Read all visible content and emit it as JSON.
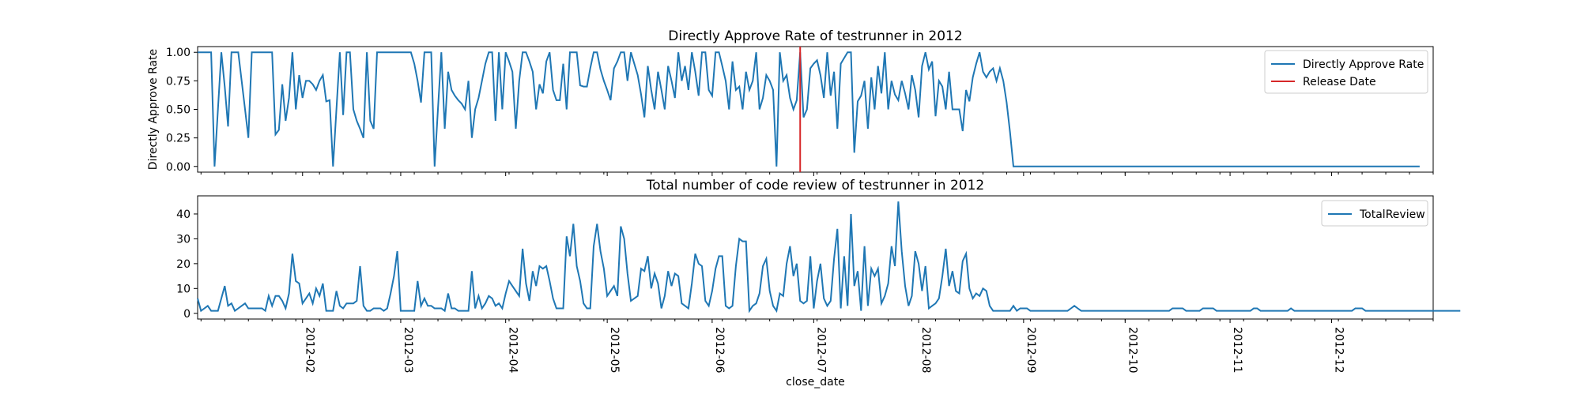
{
  "chart_data": [
    {
      "type": "line",
      "title": "Directly Approve Rate of testrunner in 2012",
      "ylabel": "Directly Approve Rate",
      "xlabel": "",
      "ylim": [
        -0.05,
        1.05
      ],
      "yticks": [
        0.0,
        0.25,
        0.5,
        0.75,
        1.0
      ],
      "ytick_labels": [
        "0.00",
        "0.25",
        "0.50",
        "0.75",
        "1.00"
      ],
      "xlim": [
        "2012-01-01",
        "2012-12-31"
      ],
      "legend": "top-right",
      "series": [
        {
          "name": "Directly Approve Rate",
          "color": "#1f77b4",
          "x_start": "2012-01-01",
          "x_step_days": 1,
          "values": [
            1.0,
            1.0,
            1.0,
            1.0,
            1.0,
            0.0,
            0.5,
            1.0,
            0.7,
            0.35,
            1.0,
            1.0,
            1.0,
            0.75,
            0.5,
            0.25,
            1.0,
            1.0,
            1.0,
            1.0,
            1.0,
            1.0,
            1.0,
            0.28,
            0.32,
            0.72,
            0.4,
            0.6,
            1.0,
            0.5,
            0.8,
            0.6,
            0.75,
            0.75,
            0.72,
            0.67,
            0.75,
            0.8,
            0.57,
            0.58,
            0.0,
            0.5,
            1.0,
            0.45,
            1.0,
            1.0,
            0.5,
            0.4,
            0.33,
            0.25,
            1.0,
            0.4,
            0.33,
            1.0,
            1.0,
            1.0,
            1.0,
            1.0,
            1.0,
            1.0,
            1.0,
            1.0,
            1.0,
            1.0,
            0.9,
            0.75,
            0.56,
            1.0,
            1.0,
            1.0,
            0.0,
            0.5,
            1.0,
            0.33,
            0.83,
            0.67,
            0.62,
            0.58,
            0.55,
            0.5,
            0.75,
            0.25,
            0.5,
            0.6,
            0.75,
            0.9,
            1.0,
            1.0,
            0.4,
            1.0,
            0.5,
            1.0,
            0.92,
            0.83,
            0.33,
            0.75,
            1.0,
            1.0,
            0.92,
            0.83,
            0.5,
            0.72,
            0.64,
            0.92,
            1.0,
            0.67,
            0.58,
            0.58,
            0.9,
            0.5,
            1.0,
            1.0,
            1.0,
            0.71,
            0.7,
            0.7,
            0.86,
            1.0,
            1.0,
            0.85,
            0.75,
            0.67,
            0.58,
            0.86,
            0.92,
            1.0,
            1.0,
            0.75,
            1.0,
            0.9,
            0.8,
            0.63,
            0.43,
            0.88,
            0.67,
            0.5,
            0.83,
            0.67,
            0.5,
            0.88,
            0.75,
            0.6,
            1.0,
            0.75,
            0.88,
            0.67,
            1.0,
            0.83,
            0.62,
            1.0,
            1.0,
            0.67,
            0.62,
            1.0,
            1.0,
            0.88,
            0.75,
            0.5,
            0.92,
            0.67,
            0.7,
            0.5,
            0.83,
            0.67,
            0.75,
            1.0,
            0.5,
            0.6,
            0.8,
            0.75,
            0.67,
            0.0,
            1.0,
            0.75,
            0.8,
            0.6,
            0.5,
            0.58,
            1.0,
            0.43,
            0.5,
            0.86,
            0.9,
            0.93,
            0.8,
            0.6,
            1.0,
            0.62,
            0.83,
            0.33,
            0.9,
            0.95,
            1.0,
            1.0,
            0.12,
            0.57,
            0.62,
            0.75,
            0.33,
            0.78,
            0.5,
            0.88,
            0.64,
            1.0,
            0.5,
            0.75,
            0.63,
            0.58,
            0.75,
            0.64,
            0.5,
            0.8,
            0.67,
            0.43,
            0.88,
            1.0,
            0.85,
            0.92,
            0.44,
            0.75,
            0.7,
            0.5,
            0.83,
            0.5,
            0.5,
            0.5,
            0.31,
            0.67,
            0.57,
            0.78,
            0.9,
            1.0,
            0.83,
            0.78,
            0.83,
            0.86,
            0.75,
            0.86,
            0.75,
            0.56,
            0.3,
            0.0,
            0.0,
            0.0,
            0.0,
            0.0,
            0.0,
            0.0,
            0.0,
            0.0,
            0.0,
            0.0,
            0.0,
            0.0,
            0.0,
            0.0,
            0.0,
            0.0,
            0.0,
            0.0,
            0.0,
            0.0,
            0.0,
            0.0,
            0.0,
            0.0,
            0.0,
            0.0,
            0.0,
            0.0,
            0.0,
            0.0,
            0.0,
            0.0,
            0.0,
            0.0,
            0.0,
            0.0,
            0.0,
            0.0,
            0.0,
            0.0,
            0.0,
            0.0,
            0.0,
            0.0,
            0.0,
            0.0,
            0.0,
            0.0,
            0.0,
            0.0,
            0.0,
            0.0,
            0.0,
            0.0,
            0.0,
            0.0,
            0.0,
            0.0,
            0.0,
            0.0,
            0.0,
            0.0,
            0.0,
            0.0,
            0.0,
            0.0,
            0.0,
            0.0,
            0.0,
            0.0,
            0.0,
            0.0,
            0.0,
            0.0,
            0.0,
            0.0,
            0.0,
            0.0,
            0.0,
            0.0,
            0.0,
            0.0,
            0.0,
            0.0,
            0.0,
            0.0,
            0.0,
            0.0,
            0.0,
            0.0,
            0.0,
            0.0,
            0.0,
            0.0,
            0.0,
            0.0,
            0.0,
            0.0,
            0.0,
            0.0,
            0.0,
            0.0,
            0.0,
            0.0,
            0.0,
            0.0,
            0.0,
            0.0,
            0.0,
            0.0,
            0.0,
            0.0,
            0.0,
            0.0,
            0.0,
            0.0,
            0.0,
            0.0,
            0.0,
            0.0
          ]
        },
        {
          "name": "Release Date",
          "color": "#d62728",
          "type": "vline",
          "x": "2012-06-27"
        }
      ]
    },
    {
      "type": "line",
      "title": "Total number of code review of testrunner in 2012",
      "xlabel": "close_date",
      "ylabel": "",
      "ylim": [
        -2.3,
        47.3
      ],
      "yticks": [
        0,
        10,
        20,
        30,
        40
      ],
      "ytick_labels": [
        "0",
        "10",
        "20",
        "30",
        "40"
      ],
      "xlim": [
        "2012-01-01",
        "2012-12-31"
      ],
      "xticks": [
        "2012-02-01",
        "2012-03-01",
        "2012-04-01",
        "2012-05-01",
        "2012-06-01",
        "2012-07-01",
        "2012-08-01",
        "2012-09-01",
        "2012-10-01",
        "2012-11-01",
        "2012-12-01"
      ],
      "xtick_labels": [
        "2012-02",
        "2012-03",
        "2012-04",
        "2012-05",
        "2012-06",
        "2012-07",
        "2012-08",
        "2012-09",
        "2012-10",
        "2012-11",
        "2012-12"
      ],
      "legend": "top-right",
      "series": [
        {
          "name": "TotalReview",
          "color": "#1f77b4",
          "x_start": "2012-01-01",
          "x_step_days": 1,
          "values": [
            6,
            1,
            2,
            3,
            1,
            1,
            1,
            6,
            11,
            3,
            4,
            1,
            2,
            3,
            4,
            2,
            2,
            2,
            2,
            2,
            1,
            7,
            3,
            7,
            7,
            5,
            2,
            8,
            24,
            13,
            12,
            4,
            6,
            8,
            4,
            10,
            7,
            12,
            1,
            1,
            1,
            9,
            3,
            2,
            4,
            4,
            4,
            5,
            19,
            3,
            1,
            1,
            2,
            2,
            2,
            1,
            2,
            8,
            15,
            25,
            1,
            1,
            1,
            1,
            1,
            13,
            3,
            6,
            3,
            3,
            2,
            2,
            2,
            1,
            8,
            2,
            2,
            1,
            1,
            1,
            1,
            17,
            2,
            7,
            2,
            4,
            7,
            6,
            3,
            4,
            2,
            8,
            13,
            11,
            9,
            7,
            26,
            12,
            5,
            17,
            11,
            19,
            18,
            19,
            13,
            6,
            2,
            2,
            2,
            31,
            23,
            36,
            19,
            13,
            4,
            2,
            2,
            27,
            36,
            25,
            18,
            7,
            9,
            11,
            7,
            35,
            30,
            16,
            5,
            6,
            7,
            18,
            17,
            23,
            10,
            16,
            12,
            2,
            7,
            17,
            11,
            16,
            15,
            4,
            3,
            2,
            12,
            24,
            20,
            19,
            5,
            3,
            9,
            18,
            23,
            23,
            3,
            2,
            3,
            19,
            30,
            29,
            29,
            1,
            3,
            4,
            8,
            19,
            22,
            9,
            3,
            1,
            8,
            7,
            20,
            27,
            15,
            20,
            5,
            4,
            5,
            23,
            2,
            13,
            20,
            6,
            3,
            5,
            22,
            34,
            2,
            23,
            3,
            40,
            11,
            17,
            1,
            27,
            3,
            18,
            15,
            18,
            4,
            7,
            12,
            27,
            19,
            45,
            25,
            11,
            3,
            7,
            25,
            20,
            9,
            19,
            2,
            3,
            4,
            6,
            15,
            26,
            11,
            17,
            9,
            8,
            21,
            24,
            10,
            6,
            8,
            7,
            10,
            9,
            3,
            1,
            1,
            1,
            1,
            1,
            1,
            3,
            1,
            2,
            2,
            2,
            1,
            1,
            1,
            1,
            1,
            1,
            1,
            1,
            1,
            1,
            1,
            1,
            2,
            3,
            2,
            1,
            1,
            1,
            1,
            1,
            1,
            1,
            1,
            1,
            1,
            1,
            1,
            1,
            1,
            1,
            1,
            1,
            1,
            1,
            1,
            1,
            1,
            1,
            1,
            1,
            1,
            1,
            2,
            2,
            2,
            2,
            1,
            1,
            1,
            1,
            1,
            2,
            2,
            2,
            2,
            1,
            1,
            1,
            1,
            1,
            1,
            1,
            1,
            1,
            1,
            1,
            2,
            2,
            1,
            1,
            1,
            1,
            1,
            1,
            1,
            1,
            1,
            2,
            1,
            1,
            1,
            1,
            1,
            1,
            1,
            1,
            1,
            1,
            1,
            1,
            1,
            1,
            1,
            1,
            1,
            1,
            2,
            2,
            2,
            1,
            1,
            1,
            1,
            1,
            1,
            1,
            1,
            1,
            1,
            1,
            1,
            1,
            1,
            1,
            1,
            1,
            1,
            1,
            1,
            1,
            1,
            1,
            1,
            1,
            1,
            1,
            1,
            1
          ]
        }
      ]
    }
  ]
}
